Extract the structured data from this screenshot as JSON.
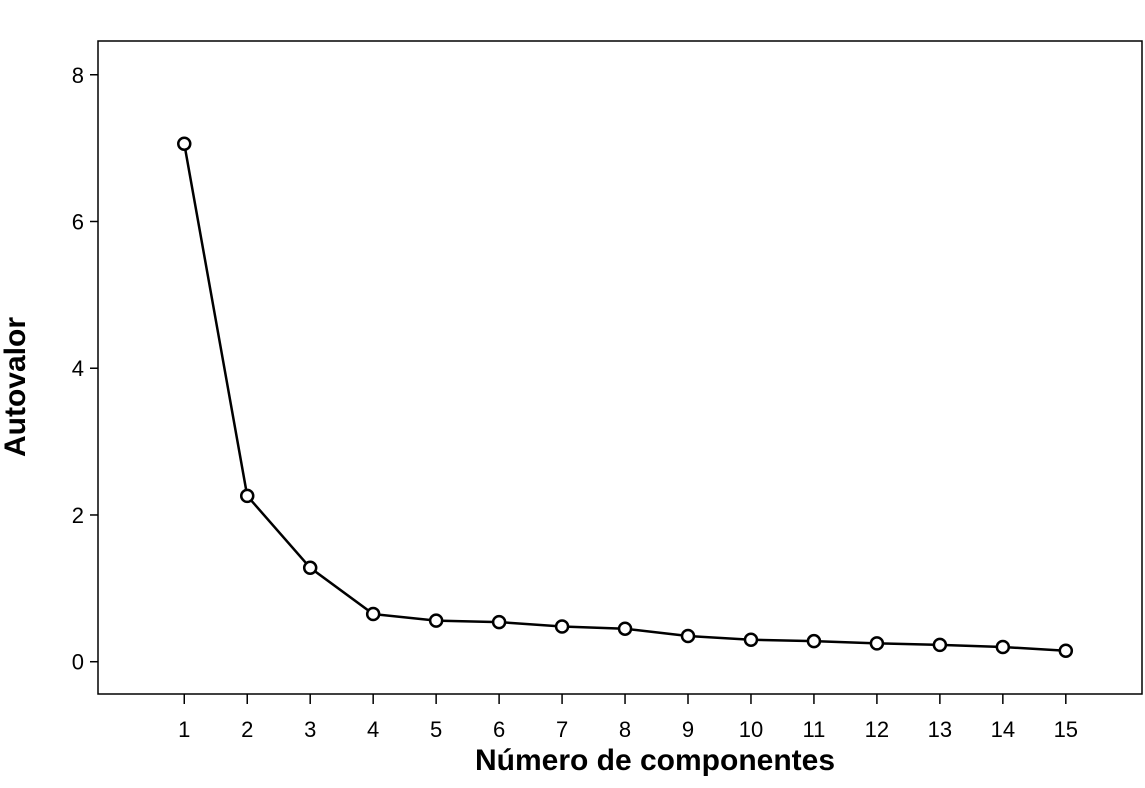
{
  "chart_data": {
    "type": "line",
    "x_label": "Número de componentes",
    "y_label": "Autovalor",
    "x": [
      1,
      2,
      3,
      4,
      5,
      6,
      7,
      8,
      9,
      10,
      11,
      12,
      13,
      14,
      15
    ],
    "series": [
      {
        "color": "#000000",
        "values": [
          7.06,
          2.26,
          1.28,
          0.65,
          0.56,
          0.54,
          0.48,
          0.45,
          0.35,
          0.3,
          0.28,
          0.25,
          0.23,
          0.2,
          0.15
        ]
      }
    ],
    "xlim": [
      -0.37,
      16.21
    ],
    "xticks": [
      1,
      2,
      3,
      4,
      5,
      6,
      7,
      8,
      9,
      10,
      11,
      12,
      13,
      14,
      15
    ],
    "ylim": [
      -0.44,
      8.46
    ],
    "yticks": [
      0,
      2,
      4,
      6,
      8
    ],
    "grid": false
  }
}
